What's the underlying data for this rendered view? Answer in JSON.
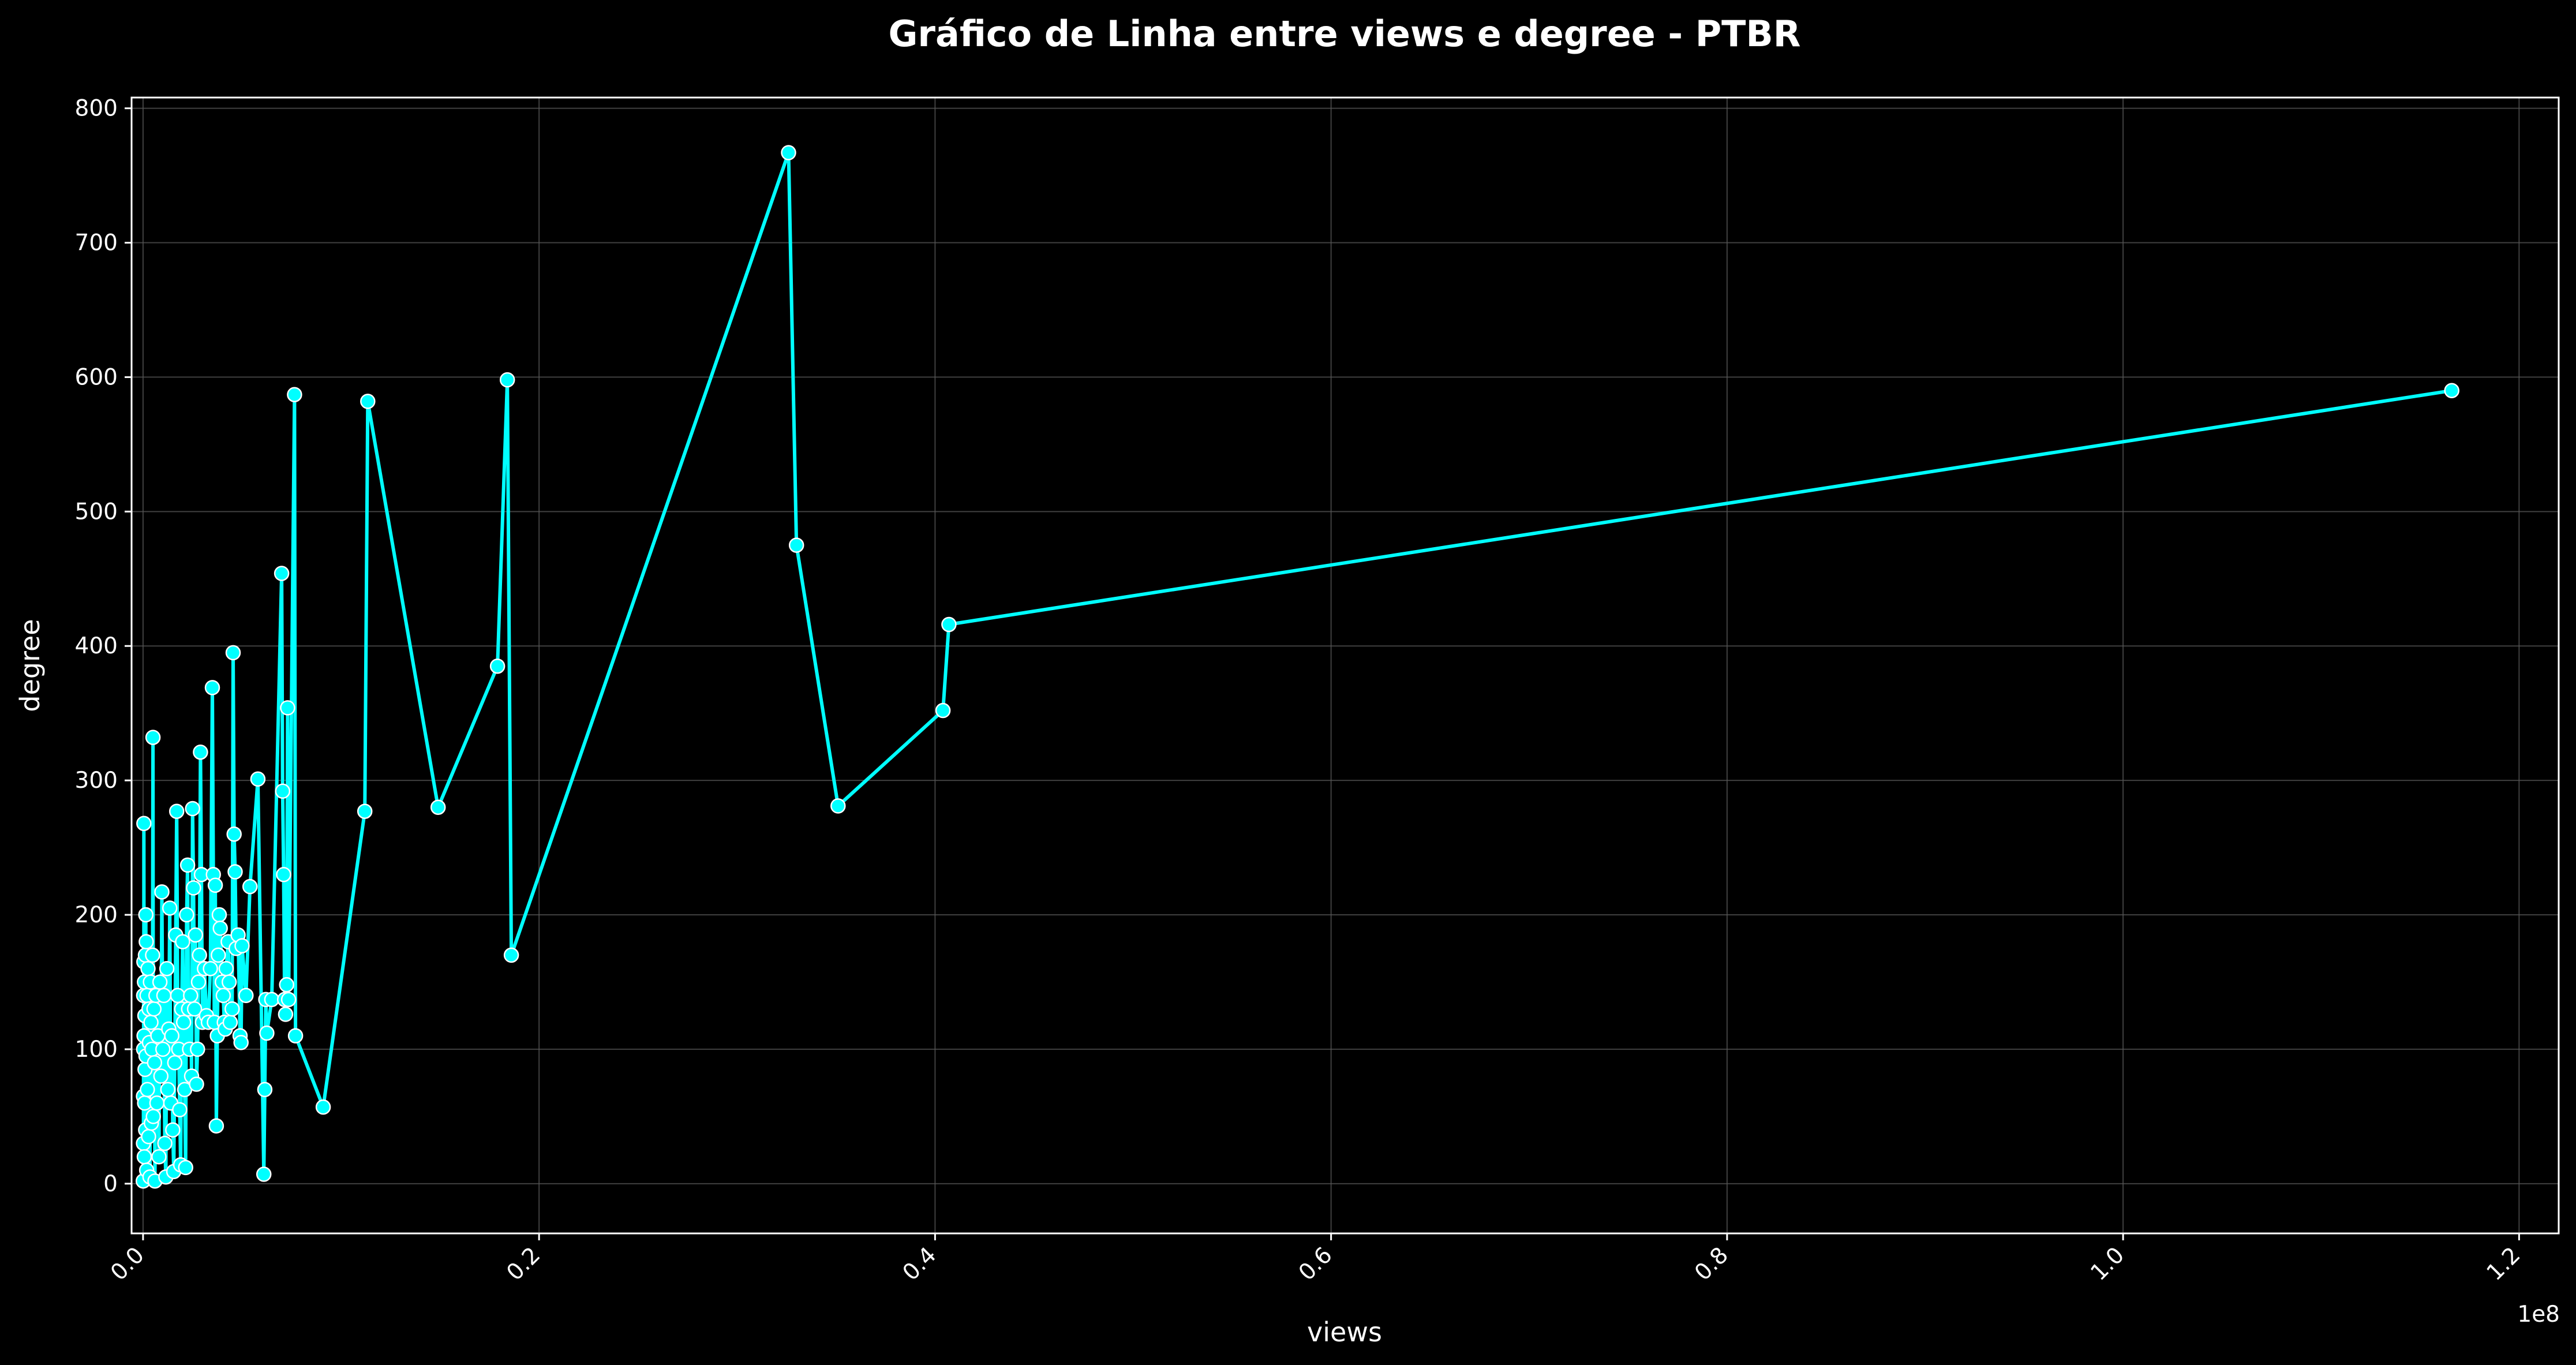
{
  "chart_data": {
    "type": "line",
    "title": "Gráfico de Linha entre views e degree - PTBR",
    "xlabel": "views",
    "ylabel": "degree",
    "x_offset_label": "1e8",
    "x_unit_scale": 100000000,
    "xlim": [
      -0.0058,
      1.22
    ],
    "ylim": [
      -37,
      808
    ],
    "x_ticks": [
      0.0,
      0.2,
      0.4,
      0.6,
      0.8,
      1.0,
      1.2
    ],
    "x_tick_labels": [
      "0.0",
      "0.2",
      "0.4",
      "0.6",
      "0.8",
      "1.0",
      "1.2"
    ],
    "y_ticks": [
      0,
      100,
      200,
      300,
      400,
      500,
      600,
      700,
      800
    ],
    "y_tick_labels": [
      "0",
      "100",
      "200",
      "300",
      "400",
      "500",
      "600",
      "700",
      "800"
    ],
    "grid": true,
    "colors": {
      "background": "#000000",
      "line": "#00ffff",
      "marker_edge": "#ffffff",
      "grid": "#555555",
      "text": "#ffffff"
    },
    "series": [
      {
        "points": [
          [
            0.0001,
            2
          ],
          [
            0.0002,
            30
          ],
          [
            0.0002,
            65
          ],
          [
            0.0003,
            100
          ],
          [
            0.0003,
            140
          ],
          [
            0.0004,
            165
          ],
          [
            0.0004,
            268
          ],
          [
            0.0005,
            110
          ],
          [
            0.0006,
            20
          ],
          [
            0.0007,
            150
          ],
          [
            0.0008,
            60
          ],
          [
            0.0009,
            125
          ],
          [
            0.001,
            85
          ],
          [
            0.0012,
            170
          ],
          [
            0.0013,
            40
          ],
          [
            0.0014,
            200
          ],
          [
            0.0015,
            95
          ],
          [
            0.0016,
            180
          ],
          [
            0.0018,
            10
          ],
          [
            0.002,
            140
          ],
          [
            0.0022,
            70
          ],
          [
            0.0025,
            160
          ],
          [
            0.0028,
            35
          ],
          [
            0.003,
            130
          ],
          [
            0.0032,
            105
          ],
          [
            0.0035,
            5
          ],
          [
            0.0037,
            150
          ],
          [
            0.004,
            120
          ],
          [
            0.0042,
            45
          ],
          [
            0.0045,
            100
          ],
          [
            0.0048,
            170
          ],
          [
            0.005,
            332
          ],
          [
            0.0052,
            50
          ],
          [
            0.0055,
            130
          ],
          [
            0.0058,
            90
          ],
          [
            0.006,
            2
          ],
          [
            0.0065,
            140
          ],
          [
            0.007,
            60
          ],
          [
            0.0075,
            110
          ],
          [
            0.008,
            20
          ],
          [
            0.0085,
            150
          ],
          [
            0.009,
            80
          ],
          [
            0.0095,
            217
          ],
          [
            0.01,
            100
          ],
          [
            0.0105,
            140
          ],
          [
            0.011,
            30
          ],
          [
            0.0115,
            5
          ],
          [
            0.012,
            160
          ],
          [
            0.0125,
            70
          ],
          [
            0.013,
            115
          ],
          [
            0.0135,
            205
          ],
          [
            0.014,
            60
          ],
          [
            0.0145,
            110
          ],
          [
            0.015,
            40
          ],
          [
            0.0155,
            9
          ],
          [
            0.016,
            90
          ],
          [
            0.0165,
            185
          ],
          [
            0.017,
            277
          ],
          [
            0.0175,
            140
          ],
          [
            0.018,
            100
          ],
          [
            0.0185,
            55
          ],
          [
            0.019,
            14
          ],
          [
            0.0195,
            130
          ],
          [
            0.02,
            180
          ],
          [
            0.0205,
            120
          ],
          [
            0.021,
            70
          ],
          [
            0.0215,
            12
          ],
          [
            0.022,
            200
          ],
          [
            0.0225,
            237
          ],
          [
            0.023,
            130
          ],
          [
            0.0235,
            100
          ],
          [
            0.024,
            140
          ],
          [
            0.0245,
            80
          ],
          [
            0.025,
            279
          ],
          [
            0.0255,
            220
          ],
          [
            0.026,
            130
          ],
          [
            0.0265,
            185
          ],
          [
            0.027,
            74
          ],
          [
            0.0275,
            100
          ],
          [
            0.028,
            150
          ],
          [
            0.0285,
            170
          ],
          [
            0.029,
            321
          ],
          [
            0.0295,
            230
          ],
          [
            0.03,
            120
          ],
          [
            0.031,
            160
          ],
          [
            0.032,
            125
          ],
          [
            0.033,
            120
          ],
          [
            0.034,
            160
          ],
          [
            0.035,
            369
          ],
          [
            0.0355,
            230
          ],
          [
            0.036,
            120
          ],
          [
            0.0365,
            222
          ],
          [
            0.037,
            43
          ],
          [
            0.0375,
            110
          ],
          [
            0.038,
            170
          ],
          [
            0.0385,
            200
          ],
          [
            0.039,
            190
          ],
          [
            0.04,
            150
          ],
          [
            0.0405,
            140
          ],
          [
            0.041,
            120
          ],
          [
            0.0415,
            115
          ],
          [
            0.042,
            160
          ],
          [
            0.043,
            180
          ],
          [
            0.0435,
            150
          ],
          [
            0.044,
            120
          ],
          [
            0.045,
            130
          ],
          [
            0.0455,
            395
          ],
          [
            0.046,
            260
          ],
          [
            0.0465,
            232
          ],
          [
            0.047,
            175
          ],
          [
            0.048,
            185
          ],
          [
            0.049,
            110
          ],
          [
            0.0495,
            105
          ],
          [
            0.05,
            177
          ],
          [
            0.052,
            140
          ],
          [
            0.054,
            221
          ],
          [
            0.058,
            301
          ],
          [
            0.061,
            7
          ],
          [
            0.0615,
            70
          ],
          [
            0.062,
            137
          ],
          [
            0.0625,
            112
          ],
          [
            0.065,
            137
          ],
          [
            0.07,
            454
          ],
          [
            0.0705,
            292
          ],
          [
            0.071,
            230
          ],
          [
            0.0715,
            137
          ],
          [
            0.072,
            126
          ],
          [
            0.0725,
            148
          ],
          [
            0.073,
            354
          ],
          [
            0.0735,
            137
          ],
          [
            0.0765,
            587
          ],
          [
            0.077,
            110
          ],
          [
            0.091,
            57
          ],
          [
            0.112,
            277
          ],
          [
            0.1135,
            582
          ],
          [
            0.149,
            280
          ],
          [
            0.179,
            385
          ],
          [
            0.184,
            598
          ],
          [
            0.186,
            170
          ],
          [
            0.326,
            767
          ],
          [
            0.33,
            475
          ],
          [
            0.351,
            281
          ],
          [
            0.404,
            352
          ],
          [
            0.407,
            416
          ],
          [
            1.166,
            590
          ]
        ]
      }
    ]
  }
}
